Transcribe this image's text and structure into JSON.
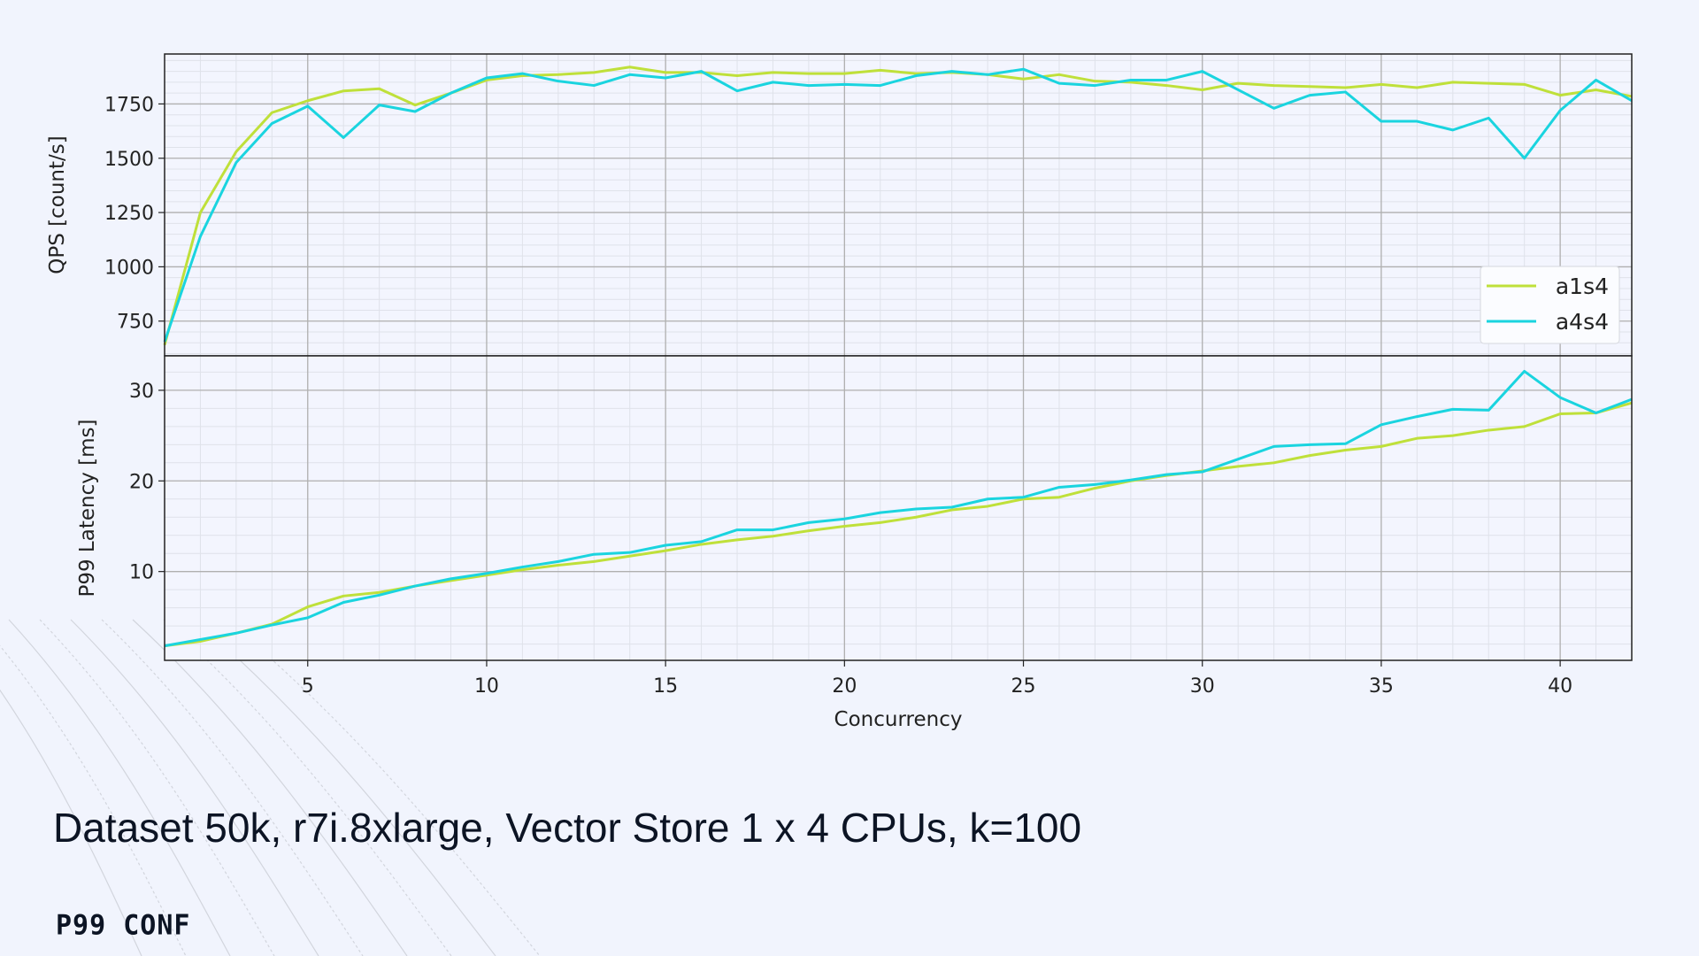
{
  "caption": "Dataset 50k, r7i.8xlarge, Vector Store 1 x 4 CPUs, k=100",
  "logo": "P99 CONF",
  "colors": {
    "a1s4": "#bfe03a",
    "a4s4": "#1ad4df",
    "background": "#f1f4fd"
  },
  "chart_data": [
    {
      "type": "line",
      "panel": "top",
      "ylabel": "QPS [count/s]",
      "ylim": [
        590,
        1980
      ],
      "xlim": [
        1,
        42
      ],
      "yticks": [
        750,
        1000,
        1250,
        1500,
        1750
      ],
      "grid": true,
      "legend": "right",
      "x": [
        1,
        2,
        3,
        4,
        5,
        6,
        7,
        8,
        9,
        10,
        11,
        12,
        13,
        14,
        15,
        16,
        17,
        18,
        19,
        20,
        21,
        22,
        23,
        24,
        25,
        26,
        27,
        28,
        29,
        30,
        31,
        32,
        33,
        34,
        35,
        36,
        37,
        38,
        39,
        40,
        41,
        42
      ],
      "series": [
        {
          "name": "a1s4",
          "values": [
            640,
            1250,
            1530,
            1710,
            1765,
            1810,
            1820,
            1745,
            1800,
            1860,
            1880,
            1885,
            1895,
            1920,
            1895,
            1895,
            1880,
            1895,
            1890,
            1890,
            1905,
            1890,
            1895,
            1885,
            1865,
            1885,
            1855,
            1850,
            1835,
            1815,
            1845,
            1835,
            1830,
            1825,
            1840,
            1825,
            1850,
            1845,
            1840,
            1790,
            1815,
            1785
          ]
        },
        {
          "name": "a4s4",
          "values": [
            655,
            1140,
            1480,
            1660,
            1740,
            1595,
            1745,
            1715,
            1800,
            1870,
            1890,
            1855,
            1835,
            1885,
            1870,
            1900,
            1810,
            1850,
            1835,
            1840,
            1835,
            1880,
            1900,
            1885,
            1910,
            1845,
            1835,
            1860,
            1860,
            1900,
            1815,
            1730,
            1790,
            1805,
            1670,
            1670,
            1630,
            1685,
            1500,
            1720,
            1860,
            1765
          ]
        }
      ]
    },
    {
      "type": "line",
      "panel": "bottom",
      "xlabel": "Concurrency",
      "ylabel": "P99 Latency [ms]",
      "ylim": [
        0.2,
        33.8
      ],
      "xlim": [
        1,
        42
      ],
      "xticks": [
        5,
        10,
        15,
        20,
        25,
        30,
        35,
        40
      ],
      "yticks": [
        10,
        20,
        30
      ],
      "grid": true,
      "x": [
        1,
        2,
        3,
        4,
        5,
        6,
        7,
        8,
        9,
        10,
        11,
        12,
        13,
        14,
        15,
        16,
        17,
        18,
        19,
        20,
        21,
        22,
        23,
        24,
        25,
        26,
        27,
        28,
        29,
        30,
        31,
        32,
        33,
        34,
        35,
        36,
        37,
        38,
        39,
        40,
        41,
        42
      ],
      "series": [
        {
          "name": "a1s4",
          "values": [
            1.8,
            2.3,
            3.2,
            4.2,
            6.1,
            7.3,
            7.7,
            8.4,
            9.0,
            9.6,
            10.2,
            10.7,
            11.1,
            11.7,
            12.3,
            13.0,
            13.5,
            13.9,
            14.5,
            15.0,
            15.4,
            16.0,
            16.8,
            17.2,
            18.0,
            18.2,
            19.2,
            20.0,
            20.6,
            21.1,
            21.6,
            22.0,
            22.8,
            23.4,
            23.8,
            24.7,
            25.0,
            25.6,
            26.0,
            27.4,
            27.5,
            28.6
          ]
        },
        {
          "name": "a4s4",
          "values": [
            1.8,
            2.5,
            3.2,
            4.1,
            4.9,
            6.6,
            7.4,
            8.4,
            9.2,
            9.8,
            10.5,
            11.1,
            11.9,
            12.1,
            12.9,
            13.3,
            14.6,
            14.6,
            15.4,
            15.8,
            16.5,
            16.9,
            17.1,
            18.0,
            18.2,
            19.3,
            19.6,
            20.1,
            20.7,
            21.0,
            22.4,
            23.8,
            24.0,
            24.1,
            26.2,
            27.1,
            27.9,
            27.8,
            32.1,
            29.2,
            27.5,
            29.0
          ]
        }
      ]
    }
  ]
}
